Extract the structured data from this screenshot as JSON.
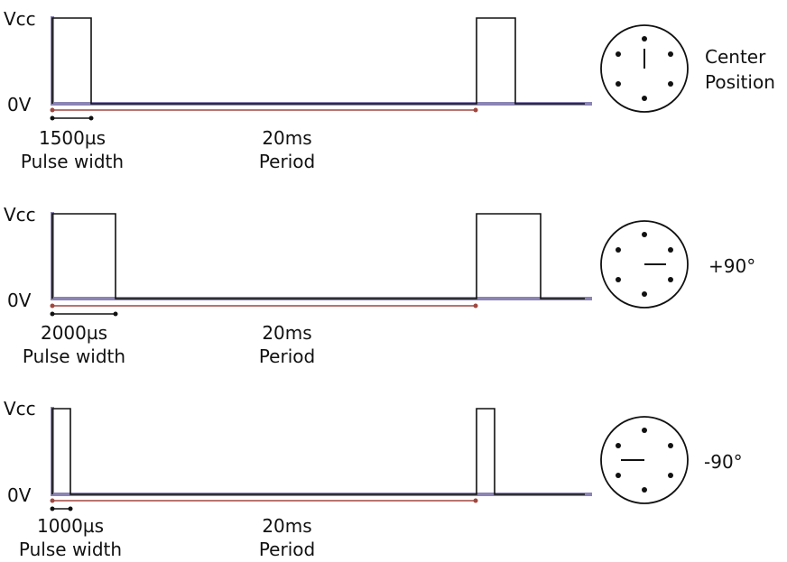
{
  "colors": {
    "axis": "#8b84b4",
    "signal": "#111111",
    "period_marker": "#a0473f",
    "width_marker": "#111111"
  },
  "panels": [
    {
      "vcc_label": "Vcc",
      "zero_label": "0V",
      "pulse_value": "1500µs",
      "pulse_caption": "Pulse width",
      "period_value": "20ms",
      "period_caption": "Period",
      "position_label_lines": [
        "Center",
        "Position"
      ],
      "pulse_width_us": 1500,
      "period_ms": 20,
      "dial_pointer": "up"
    },
    {
      "vcc_label": "Vcc",
      "zero_label": "0V",
      "pulse_value": "2000µs",
      "pulse_caption": "Pulse width",
      "period_value": "20ms",
      "period_caption": "Period",
      "position_label_lines": [
        "+90°"
      ],
      "pulse_width_us": 2000,
      "period_ms": 20,
      "dial_pointer": "right"
    },
    {
      "vcc_label": "Vcc",
      "zero_label": "0V",
      "pulse_value": "1000µs",
      "pulse_caption": "Pulse width",
      "period_value": "20ms",
      "period_caption": "Period",
      "position_label_lines": [
        "-90°"
      ],
      "pulse_width_us": 1000,
      "period_ms": 20,
      "dial_pointer": "left"
    }
  ]
}
